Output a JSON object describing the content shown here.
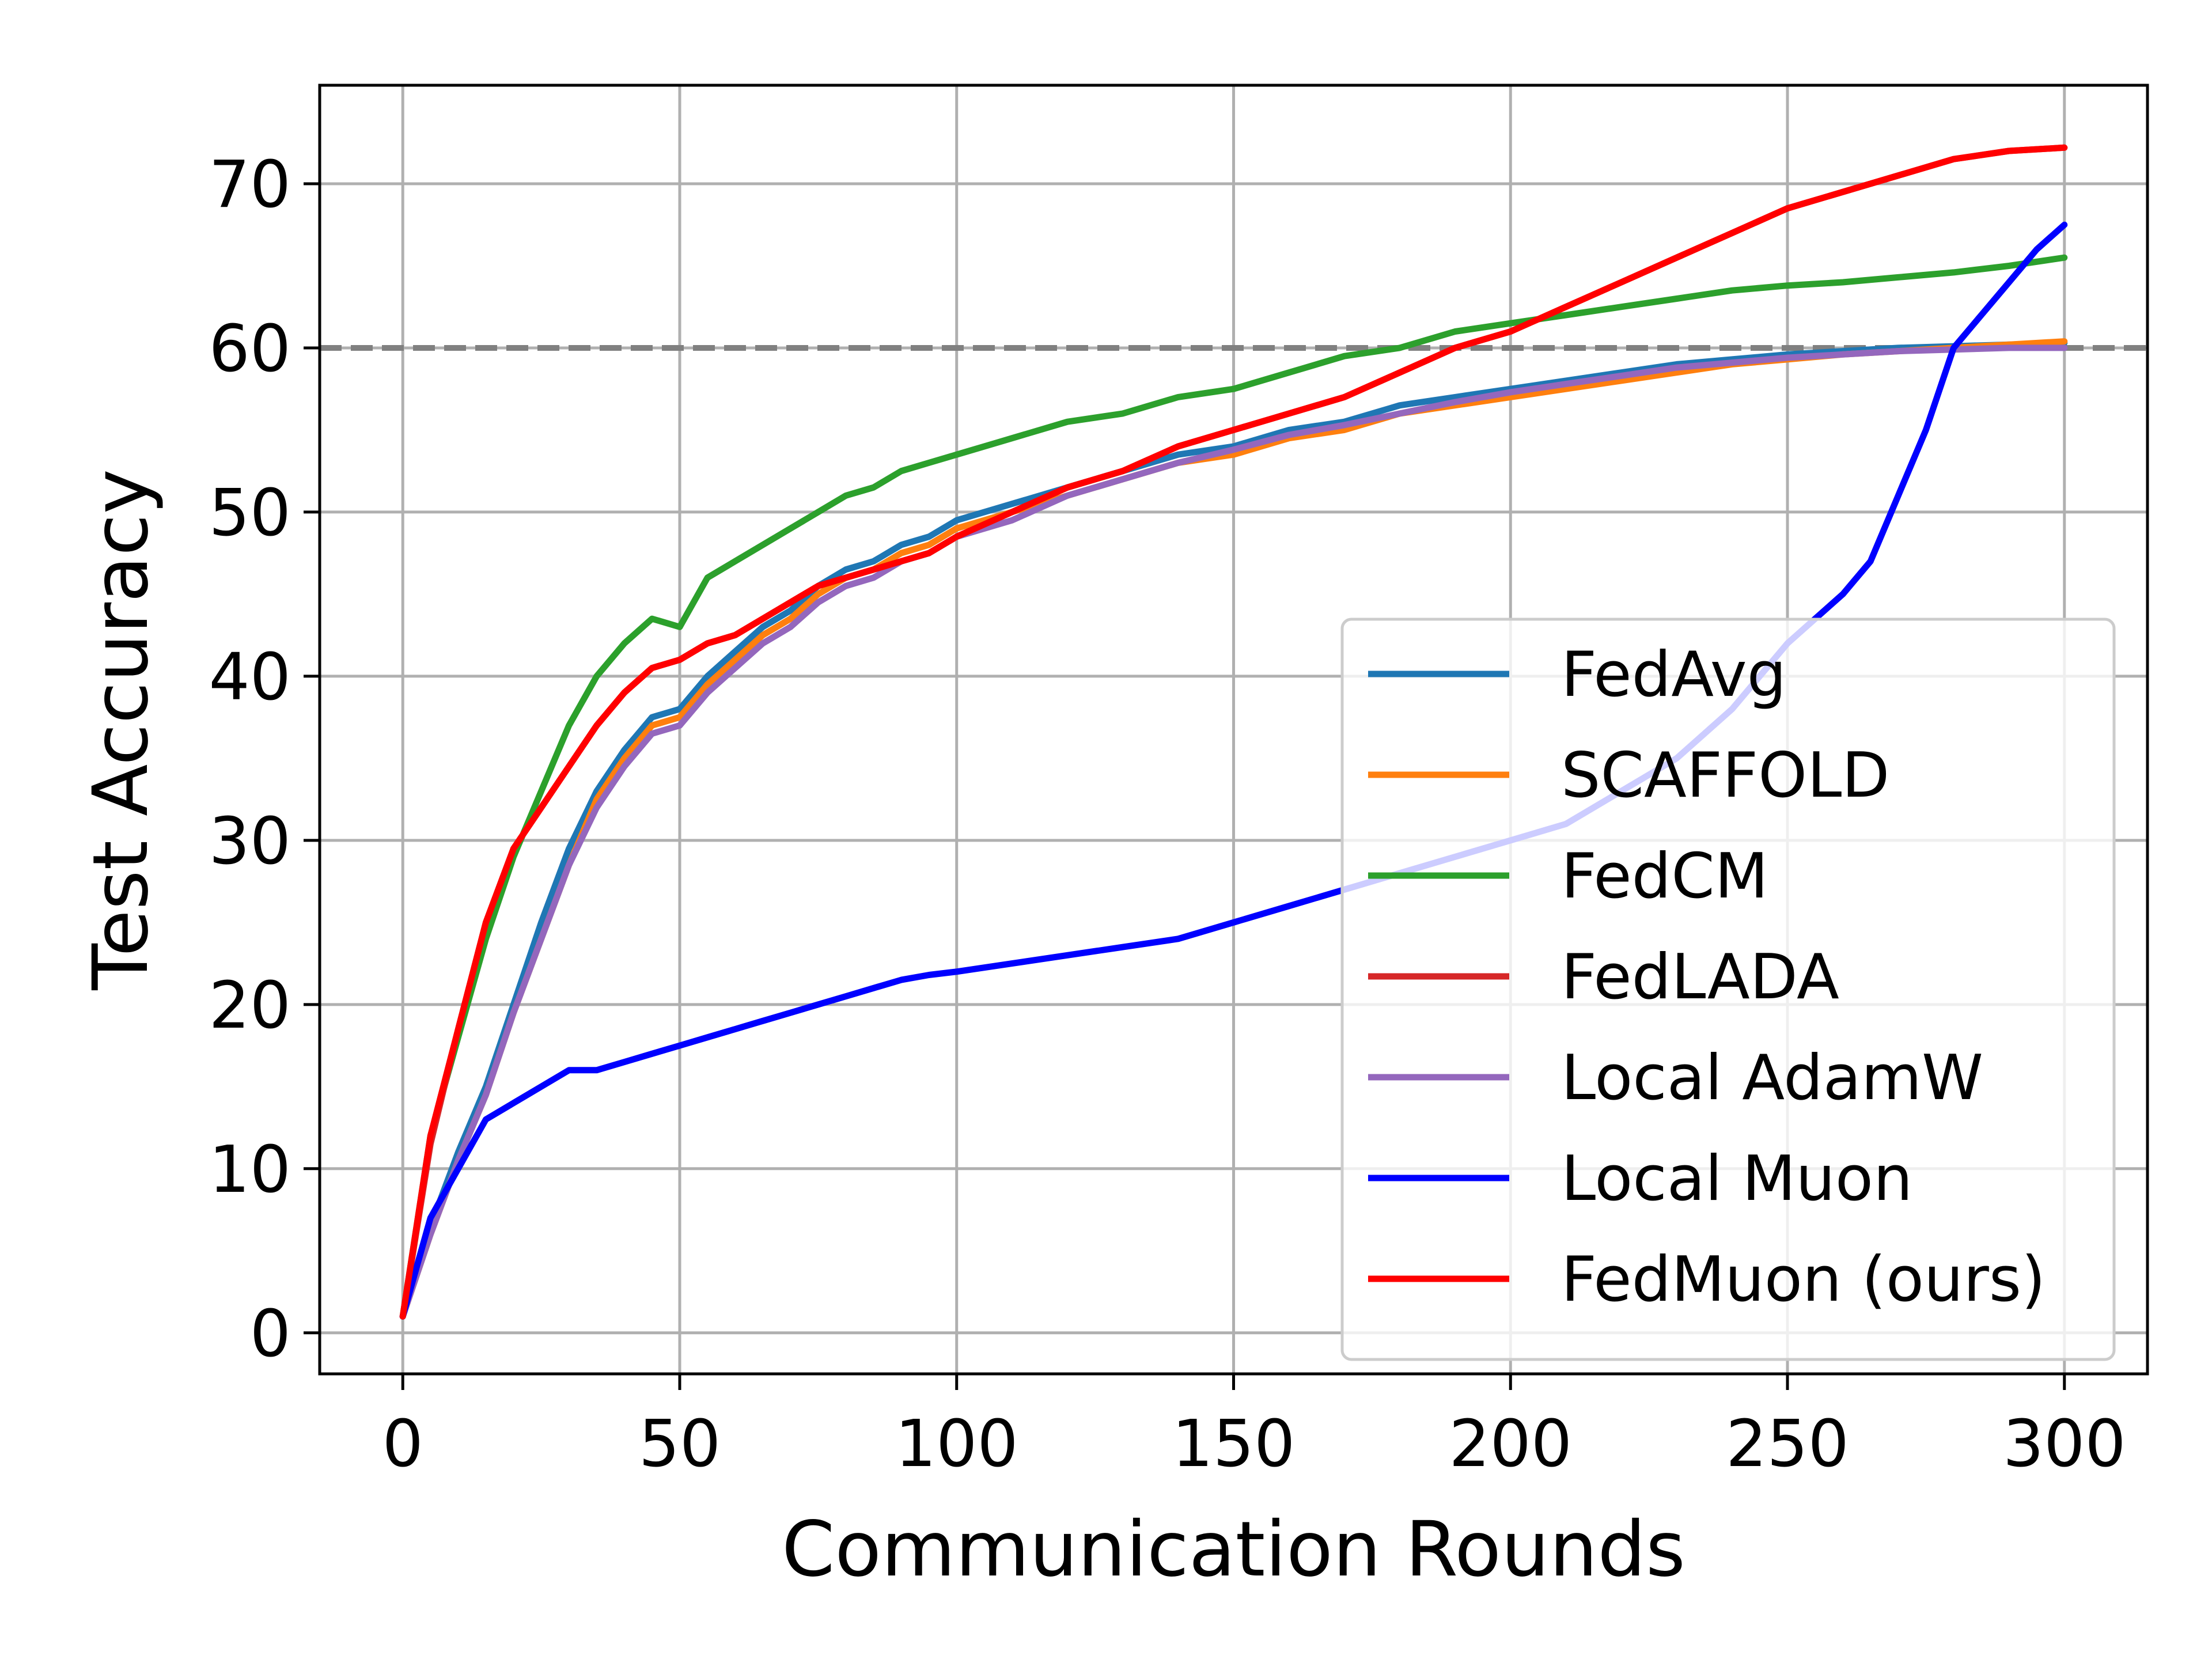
{
  "chart_data": {
    "type": "line",
    "title": "",
    "xlabel": "Communication Rounds",
    "ylabel": "Test Accuracy",
    "xlim": [
      -15,
      315
    ],
    "ylim": [
      -2.5,
      76
    ],
    "xticks": [
      0,
      50,
      100,
      150,
      200,
      250,
      300
    ],
    "yticks": [
      0,
      10,
      20,
      30,
      40,
      50,
      60,
      70
    ],
    "grid": true,
    "legend_position": "lower-right",
    "reference_line": {
      "y": 60,
      "style": "dashed",
      "color": "#808080"
    },
    "series": [
      {
        "name": "FedAvg",
        "color": "#1f77b4",
        "x": [
          0,
          5,
          10,
          15,
          20,
          25,
          30,
          35,
          40,
          45,
          50,
          55,
          60,
          65,
          70,
          75,
          80,
          85,
          90,
          95,
          100,
          110,
          120,
          130,
          140,
          150,
          160,
          170,
          180,
          190,
          200,
          210,
          220,
          230,
          240,
          250,
          260,
          270,
          280,
          290,
          300
        ],
        "y": [
          1,
          6.5,
          11,
          15,
          20,
          25,
          29.5,
          33,
          35.5,
          37.5,
          38,
          40,
          41.5,
          43,
          44,
          45.5,
          46.5,
          47,
          48,
          48.5,
          49.5,
          50.5,
          51.5,
          52.5,
          53.5,
          54,
          55,
          55.5,
          56.5,
          57,
          57.5,
          58,
          58.5,
          59,
          59.3,
          59.6,
          59.8,
          60,
          60.1,
          60.2,
          60.3
        ]
      },
      {
        "name": "SCAFFOLD",
        "color": "#ff7f0e",
        "x": [
          0,
          5,
          10,
          15,
          20,
          25,
          30,
          35,
          40,
          45,
          50,
          55,
          60,
          65,
          70,
          75,
          80,
          85,
          90,
          95,
          100,
          110,
          120,
          130,
          140,
          150,
          160,
          170,
          180,
          190,
          200,
          210,
          220,
          230,
          240,
          250,
          260,
          270,
          280,
          290,
          300
        ],
        "y": [
          1,
          6,
          10.5,
          14.5,
          19.5,
          24,
          28.5,
          32.5,
          35,
          37,
          37.5,
          39.5,
          41,
          42.5,
          43.5,
          45,
          46,
          46.5,
          47.5,
          48,
          49,
          50,
          51,
          52,
          53,
          53.5,
          54.5,
          55,
          56,
          56.5,
          57,
          57.5,
          58,
          58.5,
          59,
          59.3,
          59.6,
          59.8,
          60,
          60.2,
          60.4
        ]
      },
      {
        "name": "FedCM",
        "color": "#2ca02c",
        "x": [
          0,
          5,
          10,
          15,
          20,
          25,
          30,
          35,
          40,
          45,
          50,
          55,
          60,
          65,
          70,
          75,
          80,
          85,
          90,
          95,
          100,
          110,
          120,
          130,
          140,
          150,
          160,
          170,
          180,
          190,
          200,
          210,
          220,
          230,
          240,
          250,
          260,
          270,
          280,
          290,
          300
        ],
        "y": [
          1,
          12,
          18,
          24,
          29,
          33,
          37,
          40,
          42,
          43.5,
          43,
          46,
          47,
          48,
          49,
          50,
          51,
          51.5,
          52.5,
          53,
          53.5,
          54.5,
          55.5,
          56,
          57,
          57.5,
          58.5,
          59.5,
          60,
          61,
          61.5,
          62,
          62.5,
          63,
          63.5,
          63.8,
          64,
          64.3,
          64.6,
          65,
          65.5
        ]
      },
      {
        "name": "FedLADA",
        "color": "#d62728",
        "x": [
          0,
          5,
          10,
          15,
          20,
          25,
          30,
          35,
          40,
          45,
          50,
          55,
          60,
          65,
          70,
          75,
          80,
          85,
          90,
          95,
          100,
          110,
          120,
          130,
          140,
          150,
          160,
          170,
          180,
          190,
          200,
          210,
          220,
          230,
          240,
          250,
          260,
          270,
          280,
          290,
          300
        ],
        "y": [
          1,
          11.5,
          18.5,
          25,
          29.5,
          32,
          34.5,
          37,
          39,
          40.5,
          41,
          42,
          42.5,
          43.5,
          44.5,
          45.5,
          46,
          46.5,
          47,
          47.5,
          48.5,
          50,
          51.5,
          52.5,
          54,
          55,
          56,
          57,
          58.5,
          60,
          61,
          62.5,
          64,
          65.5,
          67,
          68.5,
          69.5,
          70.5,
          71.5,
          72,
          72.2
        ]
      },
      {
        "name": "Local AdamW",
        "color": "#9467bd",
        "x": [
          0,
          5,
          10,
          15,
          20,
          25,
          30,
          35,
          40,
          45,
          50,
          55,
          60,
          65,
          70,
          75,
          80,
          85,
          90,
          95,
          100,
          110,
          120,
          130,
          140,
          150,
          160,
          170,
          180,
          190,
          200,
          210,
          220,
          230,
          240,
          250,
          260,
          270,
          280,
          290,
          300
        ],
        "y": [
          1,
          6,
          10.5,
          14.5,
          19.5,
          24,
          28.5,
          32,
          34.5,
          36.5,
          37,
          39,
          40.5,
          42,
          43,
          44.5,
          45.5,
          46,
          47,
          47.5,
          48.5,
          49.5,
          51,
          52,
          53,
          53.8,
          54.7,
          55.3,
          56,
          56.7,
          57.3,
          57.8,
          58.3,
          58.8,
          59.1,
          59.4,
          59.6,
          59.8,
          59.9,
          60,
          60
        ]
      },
      {
        "name": "Local Muon",
        "color": "#0000ff",
        "x": [
          0,
          5,
          10,
          15,
          20,
          25,
          30,
          35,
          40,
          45,
          50,
          55,
          60,
          65,
          70,
          75,
          80,
          85,
          90,
          95,
          100,
          110,
          120,
          130,
          140,
          150,
          160,
          170,
          180,
          190,
          200,
          210,
          220,
          230,
          240,
          250,
          260,
          265,
          270,
          275,
          280,
          285,
          290,
          295,
          300
        ],
        "y": [
          1,
          7,
          10,
          13,
          14,
          15,
          16,
          16,
          16.5,
          17,
          17.5,
          18,
          18.5,
          19,
          19.5,
          20,
          20.5,
          21,
          21.5,
          21.8,
          22,
          22.5,
          23,
          23.5,
          24,
          25,
          26,
          27,
          28,
          29,
          30,
          31,
          33,
          35,
          38,
          42,
          45,
          47,
          51,
          55,
          60,
          62,
          64,
          66,
          67.5
        ]
      },
      {
        "name": "FedMuon (ours)",
        "color": "#ff0000",
        "x": [
          0,
          5,
          10,
          15,
          20,
          25,
          30,
          35,
          40,
          45,
          50,
          55,
          60,
          65,
          70,
          75,
          80,
          85,
          90,
          95,
          100,
          110,
          120,
          130,
          140,
          150,
          160,
          170,
          180,
          190,
          200,
          210,
          220,
          230,
          240,
          250,
          260,
          270,
          280,
          290,
          300
        ],
        "y": [
          1,
          12,
          18.5,
          25,
          29.5,
          32,
          34.5,
          37,
          39,
          40.5,
          41,
          42,
          42.5,
          43.5,
          44.5,
          45.5,
          46,
          46.5,
          47,
          47.5,
          48.5,
          50,
          51.5,
          52.5,
          54,
          55,
          56,
          57,
          58.5,
          60,
          61,
          62.5,
          64,
          65.5,
          67,
          68.5,
          69.5,
          70.5,
          71.5,
          72,
          72.2
        ]
      }
    ]
  }
}
